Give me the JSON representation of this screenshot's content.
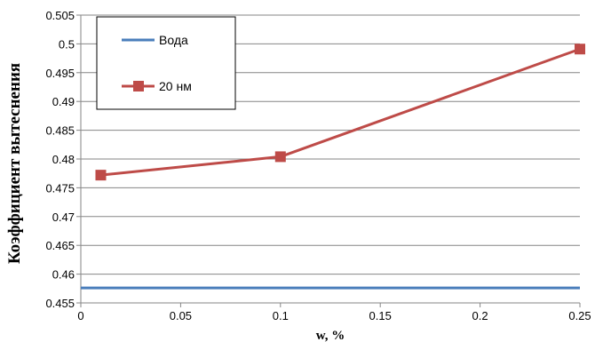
{
  "chart_data": {
    "type": "line",
    "title": "",
    "xlabel": "w, %",
    "ylabel": "Коэффициент вытеснения",
    "xlim": [
      0,
      0.25
    ],
    "ylim": [
      0.455,
      0.505
    ],
    "xticks": [
      0,
      0.05,
      0.1,
      0.15,
      0.2,
      0.25
    ],
    "xtick_labels": [
      "0",
      "0.05",
      "0.1",
      "0.15",
      "0.2",
      "0.25"
    ],
    "yticks": [
      0.455,
      0.46,
      0.465,
      0.47,
      0.475,
      0.48,
      0.485,
      0.49,
      0.495,
      0.5,
      0.505
    ],
    "ytick_labels": [
      "0.455",
      "0.46",
      "0.465",
      "0.47",
      "0.475",
      "0.48",
      "0.485",
      "0.49",
      "0.495",
      "0.5",
      "0.505"
    ],
    "grid": "horizontal",
    "legend_position": "top-left",
    "series": [
      {
        "name": "Вода",
        "color": "#4a7ebb",
        "marker": "none",
        "x": [
          0,
          0.25
        ],
        "y": [
          0.4576,
          0.4576
        ]
      },
      {
        "name": "20 нм",
        "color": "#be4b48",
        "marker": "square",
        "x": [
          0.01,
          0.1,
          0.25
        ],
        "y": [
          0.4772,
          0.4804,
          0.4991
        ]
      }
    ]
  }
}
